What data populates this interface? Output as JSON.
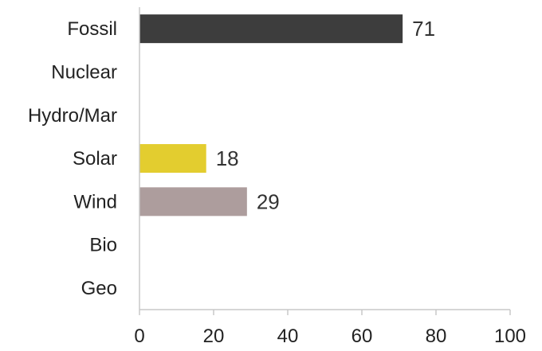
{
  "chart_data": {
    "type": "bar",
    "orientation": "horizontal",
    "categories": [
      "Fossil",
      "Nuclear",
      "Hydro/Mar",
      "Solar",
      "Wind",
      "Bio",
      "Geo"
    ],
    "values": [
      71,
      null,
      null,
      18,
      29,
      null,
      null
    ],
    "data_labels": [
      "71",
      "",
      "",
      "18",
      "29",
      "",
      ""
    ],
    "colors": [
      "#3d3d3d",
      "#3d3d3d",
      "#3d3d3d",
      "#e3cd2f",
      "#ad9d9d",
      "#3d3d3d",
      "#3d3d3d"
    ],
    "xlim": [
      0,
      100
    ],
    "xticks": [
      0,
      20,
      40,
      60,
      80,
      100
    ],
    "xtick_labels": [
      "0",
      "20",
      "40",
      "60",
      "80",
      "100"
    ],
    "grid": false,
    "legend": "none",
    "title": "",
    "xlabel": "",
    "ylabel": ""
  }
}
